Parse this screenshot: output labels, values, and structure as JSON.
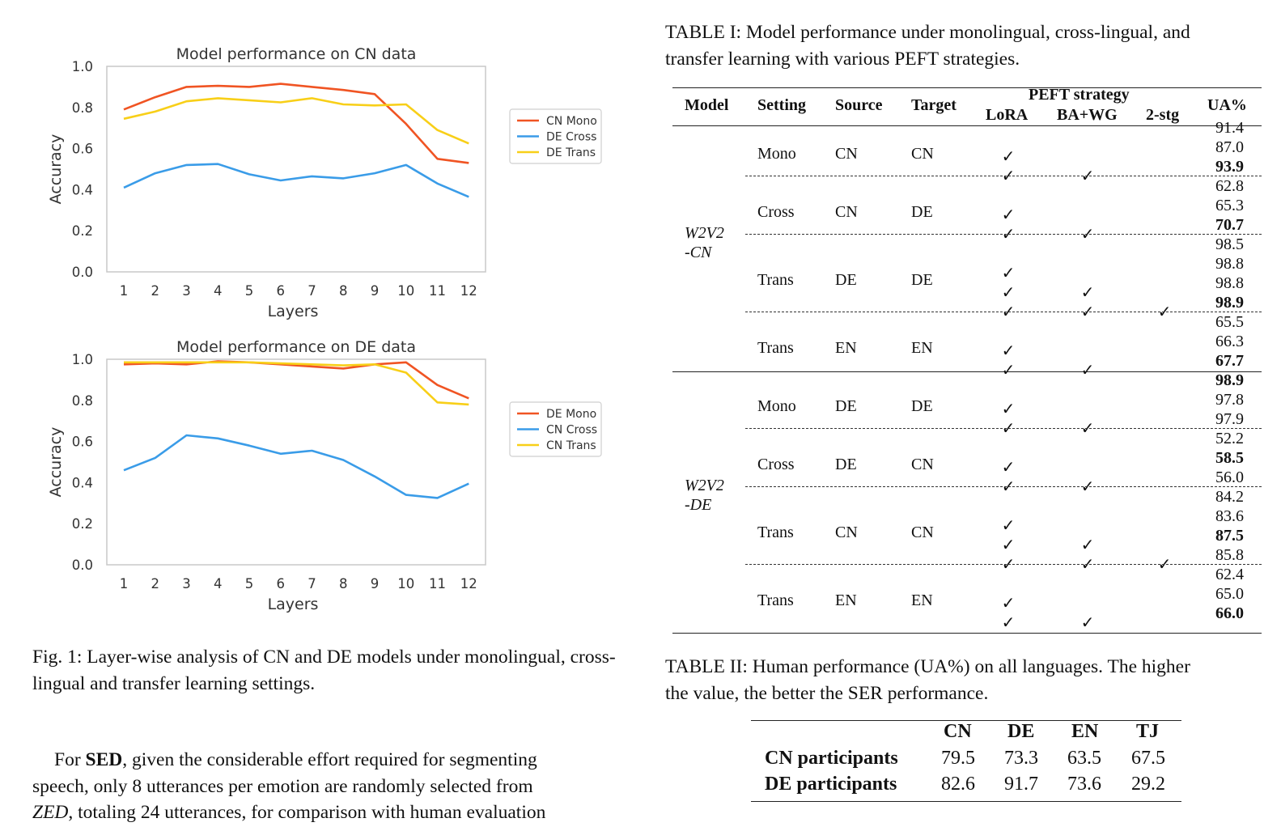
{
  "figure": {
    "caption": "Fig. 1: Layer-wise analysis of CN and DE models under monolingual, cross-lingual and transfer learning settings."
  },
  "chart_data": [
    {
      "type": "line",
      "title": "Model performance on CN data",
      "xlabel": "Layers",
      "ylabel": "Accuracy",
      "x": [
        1,
        2,
        3,
        4,
        5,
        6,
        7,
        8,
        9,
        10,
        11,
        12
      ],
      "yticks": [
        "0.0",
        "0.2",
        "0.4",
        "0.6",
        "0.8",
        "1.0"
      ],
      "ylim": [
        0,
        1.0
      ],
      "legend_position": "right",
      "series": [
        {
          "name": "CN Mono",
          "color": "#f05423",
          "values": [
            0.79,
            0.85,
            0.9,
            0.905,
            0.9,
            0.915,
            0.9,
            0.885,
            0.865,
            0.72,
            0.55,
            0.53
          ]
        },
        {
          "name": "DE Cross",
          "color": "#3a9ce8",
          "values": [
            0.41,
            0.48,
            0.52,
            0.525,
            0.475,
            0.445,
            0.465,
            0.455,
            0.48,
            0.52,
            0.43,
            0.365
          ]
        },
        {
          "name": "DE Trans",
          "color": "#f8cf18",
          "values": [
            0.745,
            0.78,
            0.83,
            0.845,
            0.835,
            0.825,
            0.845,
            0.815,
            0.81,
            0.815,
            0.69,
            0.625
          ]
        }
      ]
    },
    {
      "type": "line",
      "title": "Model performance on DE data",
      "xlabel": "Layers",
      "ylabel": "Accuracy",
      "x": [
        1,
        2,
        3,
        4,
        5,
        6,
        7,
        8,
        9,
        10,
        11,
        12
      ],
      "yticks": [
        "0.0",
        "0.2",
        "0.4",
        "0.6",
        "0.8",
        "1.0"
      ],
      "ylim": [
        0,
        1.0
      ],
      "legend_position": "right",
      "series": [
        {
          "name": "DE Mono",
          "color": "#f05423",
          "values": [
            0.975,
            0.98,
            0.975,
            0.99,
            0.985,
            0.975,
            0.965,
            0.955,
            0.975,
            0.985,
            0.875,
            0.81
          ]
        },
        {
          "name": "CN Cross",
          "color": "#3a9ce8",
          "values": [
            0.46,
            0.52,
            0.63,
            0.615,
            0.58,
            0.54,
            0.555,
            0.51,
            0.43,
            0.34,
            0.325,
            0.395
          ]
        },
        {
          "name": "CN Trans",
          "color": "#f8cf18",
          "values": [
            0.985,
            0.985,
            0.985,
            0.985,
            0.985,
            0.98,
            0.975,
            0.97,
            0.975,
            0.935,
            0.79,
            0.78
          ]
        }
      ]
    }
  ],
  "paragraph": {
    "l1_a": "For ",
    "l1_b": "SED",
    "l1_c": ", given the considerable effort required for segmenting",
    "l2": "speech, only 8 utterances per emotion are randomly selected from",
    "l3_a": "ZED",
    "l3_b": ", totaling 24 utterances, for comparison with human evaluation"
  },
  "table1": {
    "caption_l1": "TABLE I: Model performance under monolingual, cross-lingual, and",
    "caption_l2": "transfer learning with various PEFT strategies.",
    "headers": {
      "model": "Model",
      "setting": "Setting",
      "source": "Source",
      "target": "Target",
      "peft": "PEFT strategy",
      "lora": "LoRA",
      "bawg": "BA+WG",
      "twostg": "2-stg",
      "ua": "UA%"
    },
    "check": "✓",
    "models": [
      {
        "name_l1": "W2V2",
        "name_l2": "-CN"
      },
      {
        "name_l1": "W2V2",
        "name_l2": "-DE"
      }
    ],
    "groups": [
      {
        "setting": "Mono",
        "source": "CN",
        "target": "CN"
      },
      {
        "setting": "Cross",
        "source": "CN",
        "target": "DE"
      },
      {
        "setting": "Trans",
        "source": "DE",
        "target": "DE"
      },
      {
        "setting": "Trans",
        "source": "EN",
        "target": "EN"
      },
      {
        "setting": "Mono",
        "source": "DE",
        "target": "DE"
      },
      {
        "setting": "Cross",
        "source": "DE",
        "target": "CN"
      },
      {
        "setting": "Trans",
        "source": "CN",
        "target": "CN"
      },
      {
        "setting": "Trans",
        "source": "EN",
        "target": "EN"
      }
    ],
    "ua": [
      {
        "v": "91.4",
        "bold": false
      },
      {
        "v": "87.0",
        "bold": false
      },
      {
        "v": "93.9",
        "bold": true
      },
      {
        "v": "62.8",
        "bold": false
      },
      {
        "v": "65.3",
        "bold": false
      },
      {
        "v": "70.7",
        "bold": true
      },
      {
        "v": "98.5",
        "bold": false
      },
      {
        "v": "98.8",
        "bold": false
      },
      {
        "v": "98.8",
        "bold": false
      },
      {
        "v": "98.9",
        "bold": true
      },
      {
        "v": "65.5",
        "bold": false
      },
      {
        "v": "66.3",
        "bold": false
      },
      {
        "v": "67.7",
        "bold": true
      },
      {
        "v": "98.9",
        "bold": true
      },
      {
        "v": "97.8",
        "bold": false
      },
      {
        "v": "97.9",
        "bold": false
      },
      {
        "v": "52.2",
        "bold": false
      },
      {
        "v": "58.5",
        "bold": true
      },
      {
        "v": "56.0",
        "bold": false
      },
      {
        "v": "84.2",
        "bold": false
      },
      {
        "v": "83.6",
        "bold": false
      },
      {
        "v": "87.5",
        "bold": true
      },
      {
        "v": "85.8",
        "bold": false
      },
      {
        "v": "62.4",
        "bold": false
      },
      {
        "v": "65.0",
        "bold": false
      },
      {
        "v": "66.0",
        "bold": true
      }
    ]
  },
  "table2": {
    "caption_l1": "TABLE II: Human performance (UA%) on all languages. The higher",
    "caption_l2": "the value, the better the SER performance.",
    "columns": [
      "CN",
      "DE",
      "EN",
      "TJ"
    ],
    "rows": [
      {
        "label": "CN participants",
        "values": [
          "79.5",
          "73.3",
          "63.5",
          "67.5"
        ]
      },
      {
        "label": "DE participants",
        "values": [
          "82.6",
          "91.7",
          "73.6",
          "29.2"
        ]
      }
    ]
  }
}
